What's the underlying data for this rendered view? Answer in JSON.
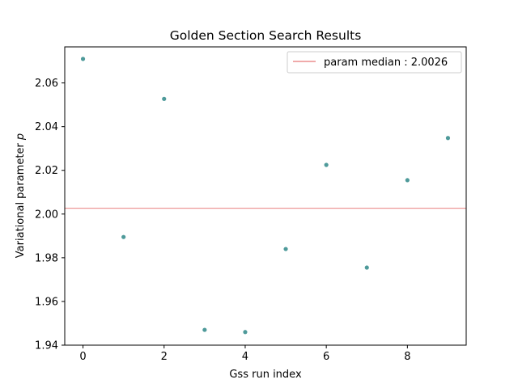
{
  "chart_data": {
    "type": "scatter",
    "title": "Golden Section Search Results",
    "xlabel": "Gss run index",
    "ylabel": "Variational parameter p",
    "xlim": [
      -0.45,
      9.45
    ],
    "ylim": [
      1.94,
      2.0765
    ],
    "xticks": [
      0,
      2,
      4,
      6,
      8
    ],
    "xtick_labels": [
      "0",
      "2",
      "4",
      "6",
      "8"
    ],
    "yticks": [
      1.94,
      1.96,
      1.98,
      2.0,
      2.02,
      2.04,
      2.06
    ],
    "ytick_labels": [
      "1.94",
      "1.96",
      "1.98",
      "2.00",
      "2.02",
      "2.04",
      "2.06"
    ],
    "grid": false,
    "legend_position": "top-right",
    "series": [
      {
        "x": [
          0,
          1,
          2,
          3,
          4,
          5,
          6,
          7,
          8,
          9
        ],
        "y": [
          2.071,
          1.9895,
          2.0527,
          1.947,
          1.946,
          1.984,
          2.0225,
          1.9755,
          2.0155,
          2.0348
        ],
        "color": "#4e9a9a"
      }
    ],
    "hlines": [
      {
        "y": 2.0026,
        "label": "param median : 2.0026",
        "color": "#e05555"
      }
    ]
  }
}
